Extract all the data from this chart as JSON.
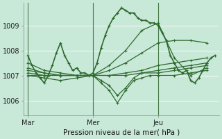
{
  "xlabel": "Pression niveau de la mer( hPa )",
  "bg_color": "#c8e8d8",
  "line_color": "#2d6a2d",
  "ylim": [
    1005.4,
    1009.9
  ],
  "xlim": [
    0,
    48
  ],
  "yticks": [
    1006,
    1007,
    1008,
    1009
  ],
  "day_labels": [
    "Mar",
    "Mer",
    "Jeu"
  ],
  "day_positions": [
    1,
    17,
    33
  ],
  "vline_positions": [
    1,
    17,
    33
  ],
  "series": [
    {
      "x": [
        1,
        2,
        3,
        4,
        5,
        6,
        7,
        8,
        9,
        10,
        11,
        12,
        13,
        14,
        15,
        16,
        17,
        18,
        19,
        20,
        21,
        22,
        23,
        24,
        25,
        26,
        27,
        28,
        29,
        30,
        31,
        32,
        33,
        34,
        35,
        36,
        37,
        38,
        39,
        40,
        41,
        42,
        43,
        44,
        45,
        46,
        47
      ],
      "y": [
        1007.8,
        1007.4,
        1007.1,
        1006.9,
        1006.7,
        1007.0,
        1007.4,
        1007.9,
        1008.3,
        1007.8,
        1007.5,
        1007.2,
        1007.3,
        1007.1,
        1007.1,
        1007.0,
        1007.1,
        1007.5,
        1008.1,
        1008.6,
        1009.0,
        1009.3,
        1009.5,
        1009.7,
        1009.6,
        1009.5,
        1009.5,
        1009.3,
        1009.2,
        1009.2,
        1009.1,
        1009.1,
        1009.0,
        1008.7,
        1008.4,
        1007.8,
        1007.5,
        1007.2,
        1007.1,
        1007.2,
        1006.8,
        1006.7,
        1006.9,
        1007.2,
        1007.5,
        1007.7,
        1007.8
      ],
      "lw": 1.2
    },
    {
      "x": [
        1,
        5,
        9,
        13,
        17,
        21,
        25,
        29,
        33,
        37,
        41,
        45
      ],
      "y": [
        1007.5,
        1007.2,
        1007.1,
        1007.0,
        1007.0,
        1007.4,
        1008.0,
        1008.8,
        1009.1,
        1007.7,
        1007.0,
        1007.3
      ],
      "lw": 0.9
    },
    {
      "x": [
        1,
        5,
        9,
        13,
        17,
        21,
        25,
        29,
        33,
        37,
        41,
        45
      ],
      "y": [
        1007.3,
        1007.1,
        1007.0,
        1007.0,
        1007.0,
        1007.2,
        1007.5,
        1007.9,
        1008.3,
        1008.4,
        1008.4,
        1008.3
      ],
      "lw": 0.9
    },
    {
      "x": [
        1,
        5,
        9,
        13,
        17,
        21,
        25,
        29,
        33,
        37,
        41,
        45
      ],
      "y": [
        1007.2,
        1007.1,
        1007.0,
        1007.0,
        1007.0,
        1007.0,
        1007.1,
        1007.2,
        1007.4,
        1007.5,
        1007.6,
        1007.7
      ],
      "lw": 0.9
    },
    {
      "x": [
        1,
        5,
        9,
        13,
        17,
        21,
        25,
        29,
        33,
        37,
        41,
        45
      ],
      "y": [
        1007.0,
        1007.0,
        1007.0,
        1007.0,
        1007.0,
        1007.0,
        1007.0,
        1007.1,
        1007.2,
        1007.3,
        1007.4,
        1007.5
      ],
      "lw": 0.9
    },
    {
      "x": [
        1,
        5,
        9,
        13,
        17,
        19,
        21,
        23,
        25,
        27,
        29,
        31,
        33,
        37,
        41,
        45
      ],
      "y": [
        1007.0,
        1006.9,
        1006.8,
        1006.9,
        1007.0,
        1006.7,
        1006.4,
        1005.9,
        1006.4,
        1006.8,
        1006.9,
        1007.0,
        1007.0,
        1007.0,
        1007.1,
        1007.2
      ],
      "lw": 0.9
    },
    {
      "x": [
        1,
        5,
        9,
        13,
        17,
        19,
        21,
        23,
        25,
        27,
        29,
        33,
        37,
        41,
        45
      ],
      "y": [
        1007.1,
        1007.0,
        1007.0,
        1007.0,
        1007.0,
        1006.8,
        1006.6,
        1006.2,
        1006.5,
        1006.9,
        1007.1,
        1007.1,
        1007.2,
        1007.3,
        1007.4
      ],
      "lw": 0.9
    }
  ]
}
